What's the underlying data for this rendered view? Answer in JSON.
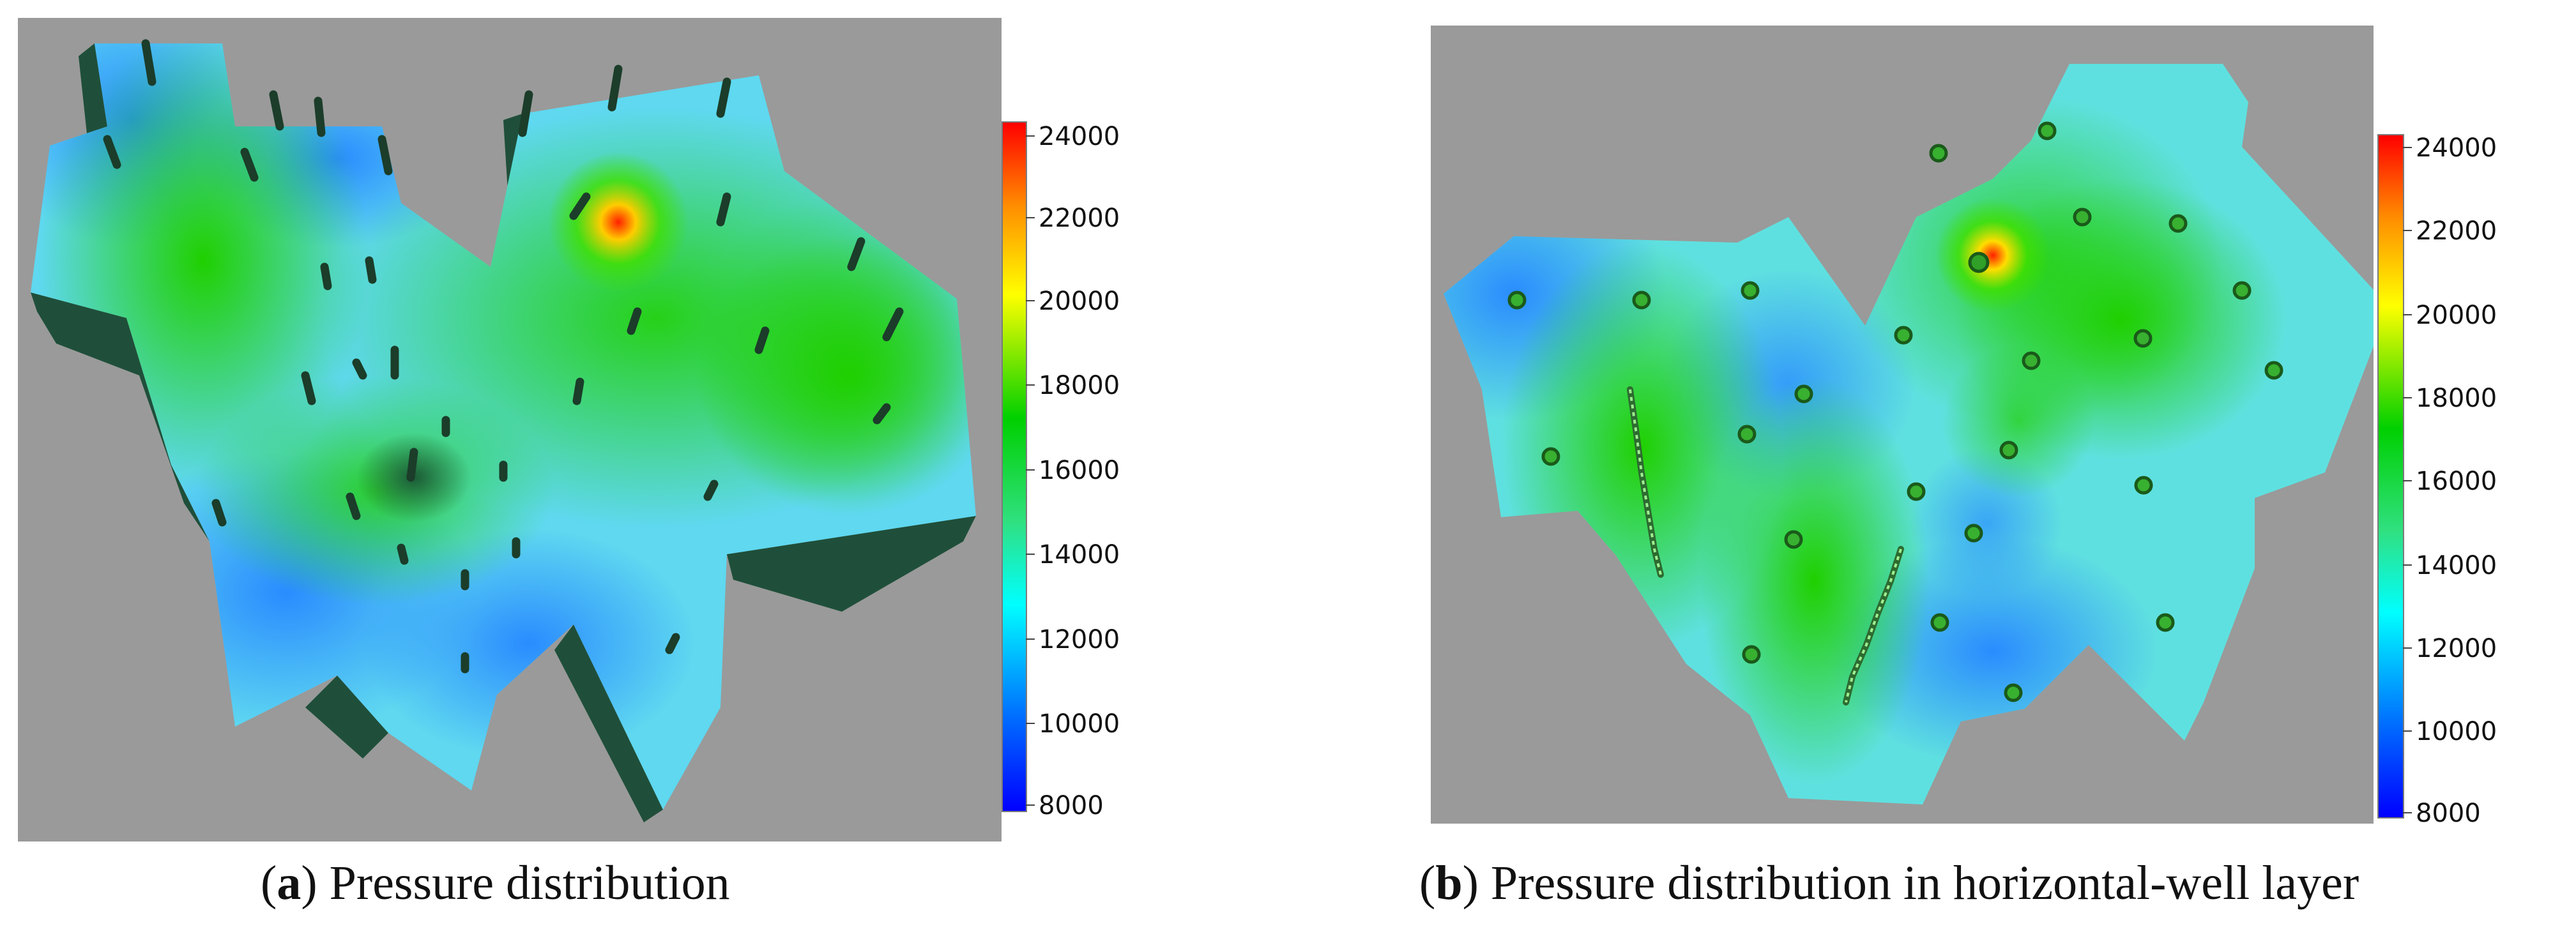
{
  "panels": [
    {
      "id": "a",
      "caption_letter": "a",
      "caption_text": "Pressure distribution",
      "colorbar_ticks": [
        "24000",
        "22000",
        "20000",
        "18000",
        "16000",
        "14000",
        "12000",
        "10000",
        "8000"
      ]
    },
    {
      "id": "b",
      "caption_letter": "b",
      "caption_text": "Pressure distribution in horizontal-well layer",
      "colorbar_ticks": [
        "24000",
        "22000",
        "20000",
        "18000",
        "16000",
        "14000",
        "12000",
        "10000",
        "8000"
      ]
    }
  ],
  "colors": {
    "background_gray": "#9a9a9a",
    "colormap": [
      "#ff0000",
      "#ff8c00",
      "#ffff00",
      "#00d000",
      "#00ffff",
      "#0070ff",
      "#0000ff"
    ]
  }
}
